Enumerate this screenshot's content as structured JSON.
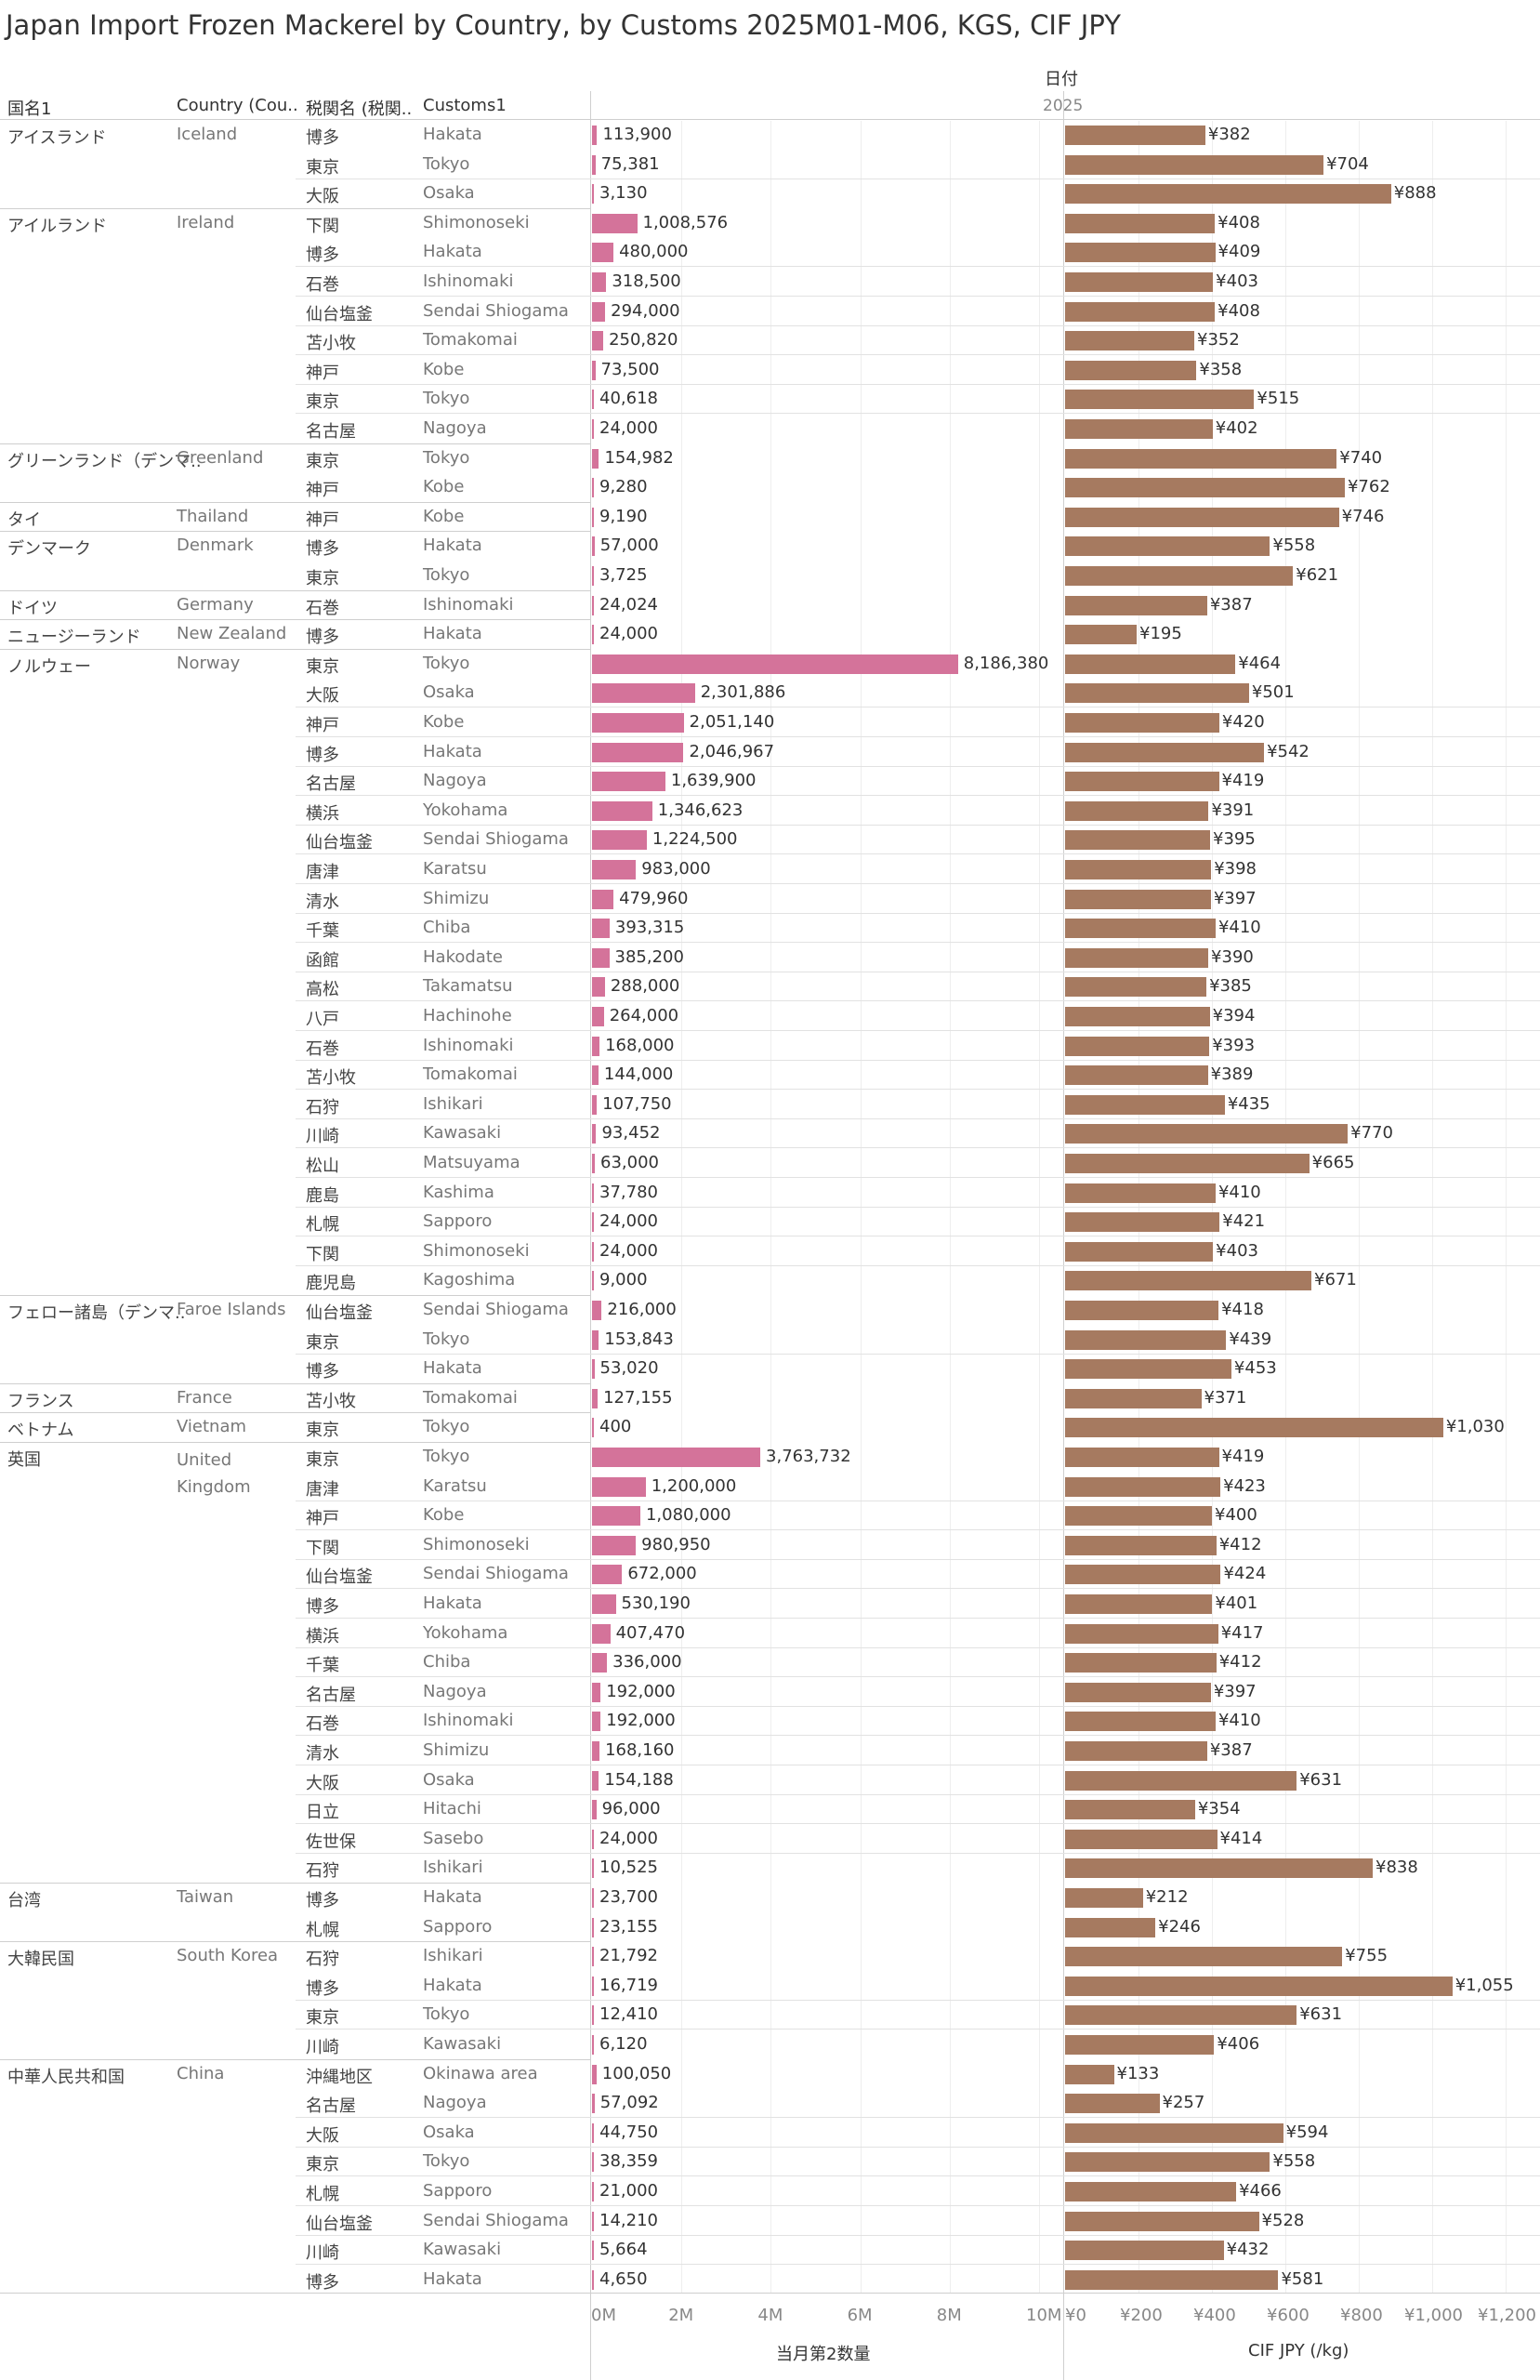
{
  "title": "Japan Import Frozen Mackerel by Country, by Customs 2025M01-M06, KGS, CIF JPY",
  "headers": {
    "country_jp": "国名1",
    "country_en": "Country (Cou..",
    "customs_jp": "税関名 (税関..",
    "customs_en": "Customs1",
    "date": "日付",
    "year": "2025"
  },
  "axes": {
    "qty_ticks": [
      "0M",
      "2M",
      "4M",
      "6M",
      "8M",
      "10M"
    ],
    "qty_title": "当月第2数量",
    "cif_ticks": [
      "¥0",
      "¥200",
      "¥400",
      "¥600",
      "¥800",
      "¥1,000",
      "¥1,200"
    ],
    "cif_title": "CIF JPY (/kg)"
  },
  "colors": {
    "qty_bar": "#d4739a",
    "cif_bar": "#a67a60"
  },
  "chart_data": {
    "type": "bar",
    "series": [
      {
        "name": "当月第2数量",
        "unit": "KGS",
        "xlim": [
          0,
          10000000
        ]
      },
      {
        "name": "CIF JPY (/kg)",
        "unit": "JPY",
        "xlim": [
          0,
          1200
        ]
      }
    ],
    "groups": [
      {
        "country_jp": "アイスランド",
        "country_en": "Iceland",
        "rows": [
          {
            "customs_jp": "博多",
            "customs_en": "Hakata",
            "qty": 113900,
            "qty_label": "113,900",
            "cif": 382,
            "cif_label": "¥382"
          },
          {
            "customs_jp": "東京",
            "customs_en": "Tokyo",
            "qty": 75381,
            "qty_label": "75,381",
            "cif": 704,
            "cif_label": "¥704"
          },
          {
            "customs_jp": "大阪",
            "customs_en": "Osaka",
            "qty": 3130,
            "qty_label": "3,130",
            "cif": 888,
            "cif_label": "¥888"
          }
        ]
      },
      {
        "country_jp": "アイルランド",
        "country_en": "Ireland",
        "rows": [
          {
            "customs_jp": "下関",
            "customs_en": "Shimonoseki",
            "qty": 1008576,
            "qty_label": "1,008,576",
            "cif": 408,
            "cif_label": "¥408"
          },
          {
            "customs_jp": "博多",
            "customs_en": "Hakata",
            "qty": 480000,
            "qty_label": "480,000",
            "cif": 409,
            "cif_label": "¥409"
          },
          {
            "customs_jp": "石巻",
            "customs_en": "Ishinomaki",
            "qty": 318500,
            "qty_label": "318,500",
            "cif": 403,
            "cif_label": "¥403"
          },
          {
            "customs_jp": "仙台塩釜",
            "customs_en": "Sendai Shiogama",
            "qty": 294000,
            "qty_label": "294,000",
            "cif": 408,
            "cif_label": "¥408"
          },
          {
            "customs_jp": "苫小牧",
            "customs_en": "Tomakomai",
            "qty": 250820,
            "qty_label": "250,820",
            "cif": 352,
            "cif_label": "¥352"
          },
          {
            "customs_jp": "神戸",
            "customs_en": "Kobe",
            "qty": 73500,
            "qty_label": "73,500",
            "cif": 358,
            "cif_label": "¥358"
          },
          {
            "customs_jp": "東京",
            "customs_en": "Tokyo",
            "qty": 40618,
            "qty_label": "40,618",
            "cif": 515,
            "cif_label": "¥515"
          },
          {
            "customs_jp": "名古屋",
            "customs_en": "Nagoya",
            "qty": 24000,
            "qty_label": "24,000",
            "cif": 402,
            "cif_label": "¥402"
          }
        ]
      },
      {
        "country_jp": "グリーンランド（デンマ..",
        "country_en": "Greenland",
        "rows": [
          {
            "customs_jp": "東京",
            "customs_en": "Tokyo",
            "qty": 154982,
            "qty_label": "154,982",
            "cif": 740,
            "cif_label": "¥740"
          },
          {
            "customs_jp": "神戸",
            "customs_en": "Kobe",
            "qty": 9280,
            "qty_label": "9,280",
            "cif": 762,
            "cif_label": "¥762"
          }
        ]
      },
      {
        "country_jp": "タイ",
        "country_en": "Thailand",
        "rows": [
          {
            "customs_jp": "神戸",
            "customs_en": "Kobe",
            "qty": 9190,
            "qty_label": "9,190",
            "cif": 746,
            "cif_label": "¥746"
          }
        ]
      },
      {
        "country_jp": "デンマーク",
        "country_en": "Denmark",
        "rows": [
          {
            "customs_jp": "博多",
            "customs_en": "Hakata",
            "qty": 57000,
            "qty_label": "57,000",
            "cif": 558,
            "cif_label": "¥558"
          },
          {
            "customs_jp": "東京",
            "customs_en": "Tokyo",
            "qty": 3725,
            "qty_label": "3,725",
            "cif": 621,
            "cif_label": "¥621"
          }
        ]
      },
      {
        "country_jp": "ドイツ",
        "country_en": "Germany",
        "rows": [
          {
            "customs_jp": "石巻",
            "customs_en": "Ishinomaki",
            "qty": 24024,
            "qty_label": "24,024",
            "cif": 387,
            "cif_label": "¥387"
          }
        ]
      },
      {
        "country_jp": "ニュージーランド",
        "country_en": "New Zealand",
        "rows": [
          {
            "customs_jp": "博多",
            "customs_en": "Hakata",
            "qty": 24000,
            "qty_label": "24,000",
            "cif": 195,
            "cif_label": "¥195"
          }
        ]
      },
      {
        "country_jp": "ノルウェー",
        "country_en": "Norway",
        "rows": [
          {
            "customs_jp": "東京",
            "customs_en": "Tokyo",
            "qty": 8186380,
            "qty_label": "8,186,380",
            "cif": 464,
            "cif_label": "¥464"
          },
          {
            "customs_jp": "大阪",
            "customs_en": "Osaka",
            "qty": 2301886,
            "qty_label": "2,301,886",
            "cif": 501,
            "cif_label": "¥501"
          },
          {
            "customs_jp": "神戸",
            "customs_en": "Kobe",
            "qty": 2051140,
            "qty_label": "2,051,140",
            "cif": 420,
            "cif_label": "¥420"
          },
          {
            "customs_jp": "博多",
            "customs_en": "Hakata",
            "qty": 2046967,
            "qty_label": "2,046,967",
            "cif": 542,
            "cif_label": "¥542"
          },
          {
            "customs_jp": "名古屋",
            "customs_en": "Nagoya",
            "qty": 1639900,
            "qty_label": "1,639,900",
            "cif": 419,
            "cif_label": "¥419"
          },
          {
            "customs_jp": "横浜",
            "customs_en": "Yokohama",
            "qty": 1346623,
            "qty_label": "1,346,623",
            "cif": 391,
            "cif_label": "¥391"
          },
          {
            "customs_jp": "仙台塩釜",
            "customs_en": "Sendai Shiogama",
            "qty": 1224500,
            "qty_label": "1,224,500",
            "cif": 395,
            "cif_label": "¥395"
          },
          {
            "customs_jp": "唐津",
            "customs_en": "Karatsu",
            "qty": 983000,
            "qty_label": "983,000",
            "cif": 398,
            "cif_label": "¥398"
          },
          {
            "customs_jp": "清水",
            "customs_en": "Shimizu",
            "qty": 479960,
            "qty_label": "479,960",
            "cif": 397,
            "cif_label": "¥397"
          },
          {
            "customs_jp": "千葉",
            "customs_en": "Chiba",
            "qty": 393315,
            "qty_label": "393,315",
            "cif": 410,
            "cif_label": "¥410"
          },
          {
            "customs_jp": "函館",
            "customs_en": "Hakodate",
            "qty": 385200,
            "qty_label": "385,200",
            "cif": 390,
            "cif_label": "¥390"
          },
          {
            "customs_jp": "高松",
            "customs_en": "Takamatsu",
            "qty": 288000,
            "qty_label": "288,000",
            "cif": 385,
            "cif_label": "¥385"
          },
          {
            "customs_jp": "八戸",
            "customs_en": "Hachinohe",
            "qty": 264000,
            "qty_label": "264,000",
            "cif": 394,
            "cif_label": "¥394"
          },
          {
            "customs_jp": "石巻",
            "customs_en": "Ishinomaki",
            "qty": 168000,
            "qty_label": "168,000",
            "cif": 393,
            "cif_label": "¥393"
          },
          {
            "customs_jp": "苫小牧",
            "customs_en": "Tomakomai",
            "qty": 144000,
            "qty_label": "144,000",
            "cif": 389,
            "cif_label": "¥389"
          },
          {
            "customs_jp": "石狩",
            "customs_en": "Ishikari",
            "qty": 107750,
            "qty_label": "107,750",
            "cif": 435,
            "cif_label": "¥435"
          },
          {
            "customs_jp": "川崎",
            "customs_en": "Kawasaki",
            "qty": 93452,
            "qty_label": "93,452",
            "cif": 770,
            "cif_label": "¥770"
          },
          {
            "customs_jp": "松山",
            "customs_en": "Matsuyama",
            "qty": 63000,
            "qty_label": "63,000",
            "cif": 665,
            "cif_label": "¥665"
          },
          {
            "customs_jp": "鹿島",
            "customs_en": "Kashima",
            "qty": 37780,
            "qty_label": "37,780",
            "cif": 410,
            "cif_label": "¥410"
          },
          {
            "customs_jp": "札幌",
            "customs_en": "Sapporo",
            "qty": 24000,
            "qty_label": "24,000",
            "cif": 421,
            "cif_label": "¥421"
          },
          {
            "customs_jp": "下関",
            "customs_en": "Shimonoseki",
            "qty": 24000,
            "qty_label": "24,000",
            "cif": 403,
            "cif_label": "¥403"
          },
          {
            "customs_jp": "鹿児島",
            "customs_en": "Kagoshima",
            "qty": 9000,
            "qty_label": "9,000",
            "cif": 671,
            "cif_label": "¥671"
          }
        ]
      },
      {
        "country_jp": "フェロー諸島（デンマ..",
        "country_en": "Faroe Islands",
        "rows": [
          {
            "customs_jp": "仙台塩釜",
            "customs_en": "Sendai Shiogama",
            "qty": 216000,
            "qty_label": "216,000",
            "cif": 418,
            "cif_label": "¥418"
          },
          {
            "customs_jp": "東京",
            "customs_en": "Tokyo",
            "qty": 153843,
            "qty_label": "153,843",
            "cif": 439,
            "cif_label": "¥439"
          },
          {
            "customs_jp": "博多",
            "customs_en": "Hakata",
            "qty": 53020,
            "qty_label": "53,020",
            "cif": 453,
            "cif_label": "¥453"
          }
        ]
      },
      {
        "country_jp": "フランス",
        "country_en": "France",
        "rows": [
          {
            "customs_jp": "苫小牧",
            "customs_en": "Tomakomai",
            "qty": 127155,
            "qty_label": "127,155",
            "cif": 371,
            "cif_label": "¥371"
          }
        ]
      },
      {
        "country_jp": "ベトナム",
        "country_en": "Vietnam",
        "rows": [
          {
            "customs_jp": "東京",
            "customs_en": "Tokyo",
            "qty": 400,
            "qty_label": "400",
            "cif": 1030,
            "cif_label": "¥1,030"
          }
        ]
      },
      {
        "country_jp": "英国",
        "country_en": "United Kingdom",
        "rows": [
          {
            "customs_jp": "東京",
            "customs_en": "Tokyo",
            "qty": 3763732,
            "qty_label": "3,763,732",
            "cif": 419,
            "cif_label": "¥419"
          },
          {
            "customs_jp": "唐津",
            "customs_en": "Karatsu",
            "qty": 1200000,
            "qty_label": "1,200,000",
            "cif": 423,
            "cif_label": "¥423"
          },
          {
            "customs_jp": "神戸",
            "customs_en": "Kobe",
            "qty": 1080000,
            "qty_label": "1,080,000",
            "cif": 400,
            "cif_label": "¥400"
          },
          {
            "customs_jp": "下関",
            "customs_en": "Shimonoseki",
            "qty": 980950,
            "qty_label": "980,950",
            "cif": 412,
            "cif_label": "¥412"
          },
          {
            "customs_jp": "仙台塩釜",
            "customs_en": "Sendai Shiogama",
            "qty": 672000,
            "qty_label": "672,000",
            "cif": 424,
            "cif_label": "¥424"
          },
          {
            "customs_jp": "博多",
            "customs_en": "Hakata",
            "qty": 530190,
            "qty_label": "530,190",
            "cif": 401,
            "cif_label": "¥401"
          },
          {
            "customs_jp": "横浜",
            "customs_en": "Yokohama",
            "qty": 407470,
            "qty_label": "407,470",
            "cif": 417,
            "cif_label": "¥417"
          },
          {
            "customs_jp": "千葉",
            "customs_en": "Chiba",
            "qty": 336000,
            "qty_label": "336,000",
            "cif": 412,
            "cif_label": "¥412"
          },
          {
            "customs_jp": "名古屋",
            "customs_en": "Nagoya",
            "qty": 192000,
            "qty_label": "192,000",
            "cif": 397,
            "cif_label": "¥397"
          },
          {
            "customs_jp": "石巻",
            "customs_en": "Ishinomaki",
            "qty": 192000,
            "qty_label": "192,000",
            "cif": 410,
            "cif_label": "¥410"
          },
          {
            "customs_jp": "清水",
            "customs_en": "Shimizu",
            "qty": 168160,
            "qty_label": "168,160",
            "cif": 387,
            "cif_label": "¥387"
          },
          {
            "customs_jp": "大阪",
            "customs_en": "Osaka",
            "qty": 154188,
            "qty_label": "154,188",
            "cif": 631,
            "cif_label": "¥631"
          },
          {
            "customs_jp": "日立",
            "customs_en": "Hitachi",
            "qty": 96000,
            "qty_label": "96,000",
            "cif": 354,
            "cif_label": "¥354"
          },
          {
            "customs_jp": "佐世保",
            "customs_en": "Sasebo",
            "qty": 24000,
            "qty_label": "24,000",
            "cif": 414,
            "cif_label": "¥414"
          },
          {
            "customs_jp": "石狩",
            "customs_en": "Ishikari",
            "qty": 10525,
            "qty_label": "10,525",
            "cif": 838,
            "cif_label": "¥838"
          }
        ]
      },
      {
        "country_jp": "台湾",
        "country_en": "Taiwan",
        "rows": [
          {
            "customs_jp": "博多",
            "customs_en": "Hakata",
            "qty": 23700,
            "qty_label": "23,700",
            "cif": 212,
            "cif_label": "¥212"
          },
          {
            "customs_jp": "札幌",
            "customs_en": "Sapporo",
            "qty": 23155,
            "qty_label": "23,155",
            "cif": 246,
            "cif_label": "¥246"
          }
        ]
      },
      {
        "country_jp": "大韓民国",
        "country_en": "South Korea",
        "rows": [
          {
            "customs_jp": "石狩",
            "customs_en": "Ishikari",
            "qty": 21792,
            "qty_label": "21,792",
            "cif": 755,
            "cif_label": "¥755"
          },
          {
            "customs_jp": "博多",
            "customs_en": "Hakata",
            "qty": 16719,
            "qty_label": "16,719",
            "cif": 1055,
            "cif_label": "¥1,055"
          },
          {
            "customs_jp": "東京",
            "customs_en": "Tokyo",
            "qty": 12410,
            "qty_label": "12,410",
            "cif": 631,
            "cif_label": "¥631"
          },
          {
            "customs_jp": "川崎",
            "customs_en": "Kawasaki",
            "qty": 6120,
            "qty_label": "6,120",
            "cif": 406,
            "cif_label": "¥406"
          }
        ]
      },
      {
        "country_jp": "中華人民共和国",
        "country_en": "China",
        "rows": [
          {
            "customs_jp": "沖縄地区",
            "customs_en": "Okinawa area",
            "qty": 100050,
            "qty_label": "100,050",
            "cif": 133,
            "cif_label": "¥133"
          },
          {
            "customs_jp": "名古屋",
            "customs_en": "Nagoya",
            "qty": 57092,
            "qty_label": "57,092",
            "cif": 257,
            "cif_label": "¥257"
          },
          {
            "customs_jp": "大阪",
            "customs_en": "Osaka",
            "qty": 44750,
            "qty_label": "44,750",
            "cif": 594,
            "cif_label": "¥594"
          },
          {
            "customs_jp": "東京",
            "customs_en": "Tokyo",
            "qty": 38359,
            "qty_label": "38,359",
            "cif": 558,
            "cif_label": "¥558"
          },
          {
            "customs_jp": "札幌",
            "customs_en": "Sapporo",
            "qty": 21000,
            "qty_label": "21,000",
            "cif": 466,
            "cif_label": "¥466"
          },
          {
            "customs_jp": "仙台塩釜",
            "customs_en": "Sendai Shiogama",
            "qty": 14210,
            "qty_label": "14,210",
            "cif": 528,
            "cif_label": "¥528"
          },
          {
            "customs_jp": "川崎",
            "customs_en": "Kawasaki",
            "qty": 5664,
            "qty_label": "5,664",
            "cif": 432,
            "cif_label": "¥432"
          },
          {
            "customs_jp": "博多",
            "customs_en": "Hakata",
            "qty": 4650,
            "qty_label": "4,650",
            "cif": 581,
            "cif_label": "¥581"
          }
        ]
      }
    ]
  }
}
